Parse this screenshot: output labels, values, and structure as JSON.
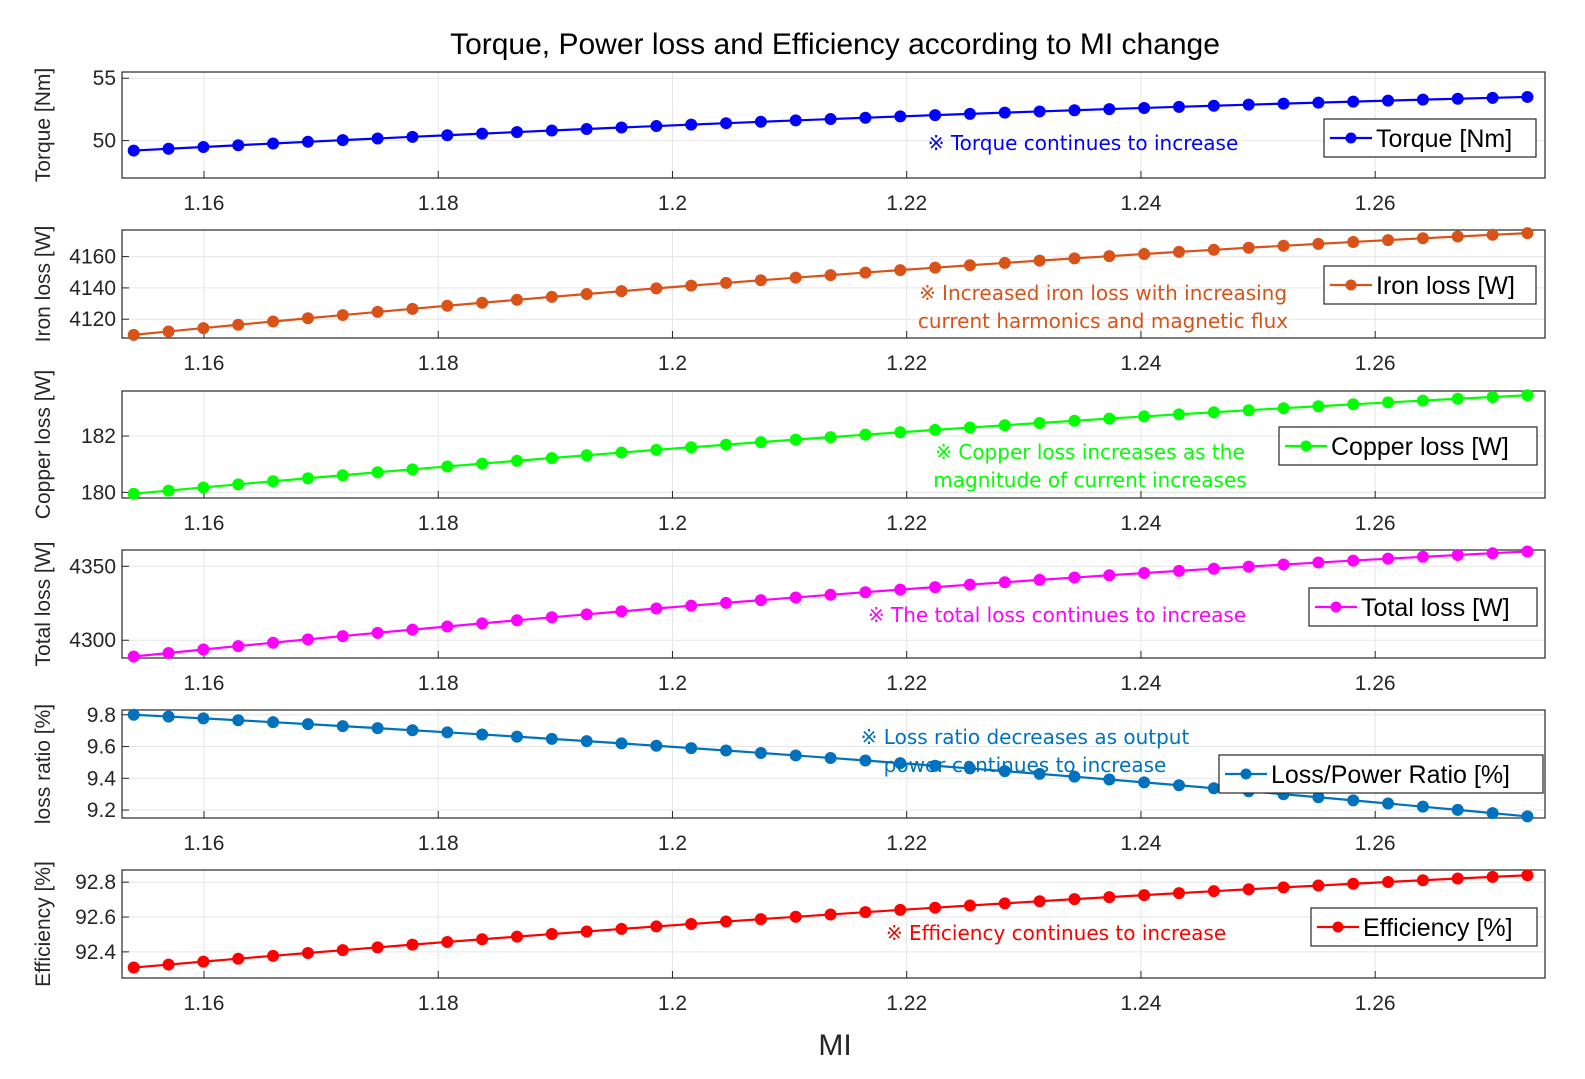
{
  "figure": {
    "title": "Torque, Power loss and Efficiency according to MI change",
    "xlabel": "MI"
  },
  "chart_data": [
    {
      "type": "line",
      "color": "#0000ff",
      "legend": "Torque [Nm]",
      "ylabel": "Torque [Nm]",
      "annotation": [
        "※ Torque continues to increase"
      ],
      "xlim": [
        1.153,
        1.2745
      ],
      "ylim": [
        47,
        55.5
      ],
      "yticks": [
        50,
        55
      ],
      "xticks": [
        1.16,
        1.18,
        1.2,
        1.22,
        1.24,
        1.26
      ],
      "x_start": 1.154,
      "x_end": 1.273,
      "n_points": 41,
      "y_start": 49.2,
      "y_end": 53.5,
      "curve": -0.35
    },
    {
      "type": "line",
      "color": "#d95319",
      "legend": "Iron loss [W]",
      "ylabel": "Iron loss [W]",
      "annotation": [
        "※ Increased iron loss with increasing",
        "current harmonics and magnetic flux"
      ],
      "xlim": [
        1.153,
        1.2745
      ],
      "ylim": [
        4108,
        4177
      ],
      "yticks": [
        4120,
        4140,
        4160
      ],
      "xticks": [
        1.16,
        1.18,
        1.2,
        1.22,
        1.24,
        1.26
      ],
      "x_start": 1.154,
      "x_end": 1.273,
      "n_points": 41,
      "y_start": 4110,
      "y_end": 4175,
      "curve": -0.35
    },
    {
      "type": "line",
      "color": "#00ff00",
      "legend": "Copper loss [W]",
      "ylabel": "Copper loss [W]",
      "annotation": [
        "※ Copper loss increases as the",
        "magnitude of current increases"
      ],
      "xlim": [
        1.153,
        1.2745
      ],
      "ylim": [
        179.8,
        183.6
      ],
      "yticks": [
        180,
        182
      ],
      "xticks": [
        1.16,
        1.18,
        1.2,
        1.22,
        1.24,
        1.26
      ],
      "x_start": 1.154,
      "x_end": 1.273,
      "n_points": 41,
      "y_start": 179.95,
      "y_end": 183.45,
      "curve": -0.3
    },
    {
      "type": "line",
      "color": "#ff00ff",
      "legend": "Total loss [W]",
      "ylabel": "Total loss [W]",
      "annotation": [
        "※ The total loss continues to increase"
      ],
      "xlim": [
        1.153,
        1.2745
      ],
      "ylim": [
        4288,
        4361
      ],
      "yticks": [
        4300,
        4350
      ],
      "xticks": [
        1.16,
        1.18,
        1.2,
        1.22,
        1.24,
        1.26
      ],
      "x_start": 1.154,
      "x_end": 1.273,
      "n_points": 41,
      "y_start": 4289,
      "y_end": 4360,
      "curve": -0.35
    },
    {
      "type": "line",
      "color": "#0072bd",
      "legend": "Loss/Power Ratio [%]",
      "ylabel": "loss ratio [%]",
      "annotation": [
        "※ Loss ratio decreases as output",
        "power continues to increase"
      ],
      "xlim": [
        1.153,
        1.2745
      ],
      "ylim": [
        9.15,
        9.83
      ],
      "yticks": [
        9.2,
        9.4,
        9.6,
        9.8
      ],
      "xticks": [
        1.16,
        1.18,
        1.2,
        1.22,
        1.24,
        1.26
      ],
      "x_start": 1.154,
      "x_end": 1.273,
      "n_points": 41,
      "y_start": 9.8,
      "y_end": 9.16,
      "curve": 0.3
    },
    {
      "type": "line",
      "color": "#ff0000",
      "legend": "Efficiency [%]",
      "ylabel": "Efficiency [%]",
      "annotation": [
        "※ Efficiency continues to increase"
      ],
      "xlim": [
        1.153,
        1.2745
      ],
      "ylim": [
        92.25,
        92.87
      ],
      "yticks": [
        92.4,
        92.6,
        92.8
      ],
      "xticks": [
        1.16,
        1.18,
        1.2,
        1.22,
        1.24,
        1.26
      ],
      "x_start": 1.154,
      "x_end": 1.273,
      "n_points": 41,
      "y_start": 92.31,
      "y_end": 92.84,
      "curve": -0.3
    }
  ]
}
